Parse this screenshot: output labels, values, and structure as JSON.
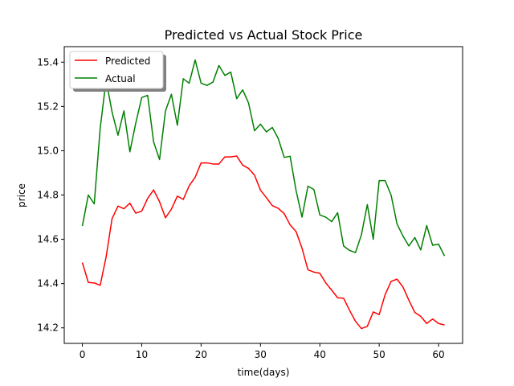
{
  "chart_data": {
    "type": "line",
    "title": "Predicted vs Actual Stock Price",
    "xlabel": "time(days)",
    "ylabel": "price",
    "xlim": [
      -3.05,
      64.05
    ],
    "ylim": [
      14.13,
      15.47
    ],
    "xticks": [
      0,
      10,
      20,
      30,
      40,
      50,
      60
    ],
    "yticks": [
      14.2,
      14.4,
      14.6,
      14.8,
      15.0,
      15.2,
      15.4
    ],
    "xtick_labels": [
      "0",
      "10",
      "20",
      "30",
      "40",
      "50",
      "60"
    ],
    "ytick_labels": [
      "14.2",
      "14.4",
      "14.6",
      "14.8",
      "15.0",
      "15.2",
      "15.4"
    ],
    "grid": false,
    "legend_position": "upper-left",
    "x": [
      0,
      1,
      2,
      3,
      4,
      5,
      6,
      7,
      8,
      9,
      10,
      11,
      12,
      13,
      14,
      15,
      16,
      17,
      18,
      19,
      20,
      21,
      22,
      23,
      24,
      25,
      26,
      27,
      28,
      29,
      30,
      31,
      32,
      33,
      34,
      35,
      36,
      37,
      38,
      39,
      40,
      41,
      42,
      43,
      44,
      45,
      46,
      47,
      48,
      49,
      50,
      51,
      52,
      53,
      54,
      55,
      56,
      57,
      58,
      59,
      60,
      61
    ],
    "series": [
      {
        "name": "Predicted",
        "color": "#ff0000",
        "values": [
          14.495,
          14.405,
          14.403,
          14.392,
          14.52,
          14.693,
          14.75,
          14.738,
          14.763,
          14.718,
          14.727,
          14.785,
          14.823,
          14.77,
          14.697,
          14.736,
          14.795,
          14.78,
          14.842,
          14.88,
          14.945,
          14.945,
          14.94,
          14.94,
          14.972,
          14.972,
          14.976,
          14.935,
          14.92,
          14.89,
          14.822,
          14.788,
          14.752,
          14.74,
          14.716,
          14.665,
          14.635,
          14.56,
          14.462,
          14.452,
          14.447,
          14.403,
          14.37,
          14.336,
          14.334,
          14.28,
          14.23,
          14.197,
          14.207,
          14.272,
          14.26,
          14.35,
          14.41,
          14.42,
          14.385,
          14.325,
          14.27,
          14.252,
          14.22,
          14.24,
          14.22,
          14.213
        ]
      },
      {
        "name": "Actual",
        "color": "#008000",
        "values": [
          14.66,
          14.8,
          14.76,
          15.1,
          15.32,
          15.175,
          15.07,
          15.18,
          14.995,
          15.125,
          15.24,
          15.25,
          15.04,
          14.96,
          15.18,
          15.255,
          15.115,
          15.325,
          15.305,
          15.41,
          15.305,
          15.295,
          15.31,
          15.385,
          15.34,
          15.355,
          15.235,
          15.275,
          15.215,
          15.09,
          15.12,
          15.085,
          15.105,
          15.055,
          14.97,
          14.975,
          14.82,
          14.7,
          14.84,
          14.825,
          14.71,
          14.7,
          14.68,
          14.72,
          14.57,
          14.55,
          14.54,
          14.62,
          14.757,
          14.6,
          14.865,
          14.865,
          14.8,
          14.67,
          14.615,
          14.57,
          14.608,
          14.552,
          14.662,
          14.573,
          14.578,
          14.525
        ]
      }
    ]
  }
}
